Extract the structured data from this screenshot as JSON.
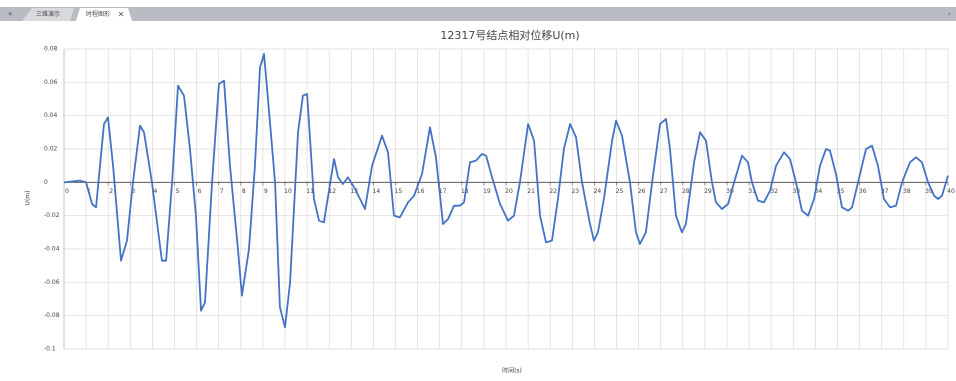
{
  "tabs": [
    "三维演示",
    "时程图形"
  ],
  "chart_data": {
    "type": "line",
    "title": "12317号结点相对位移U(m)",
    "x_label": "时间(s)",
    "y_label": "U(m)",
    "xlim": [
      0,
      40
    ],
    "xticks": [
      0,
      1,
      2,
      3,
      4,
      5,
      6,
      7,
      8,
      9,
      10,
      11,
      12,
      13,
      14,
      15,
      16,
      17,
      18,
      19,
      20,
      21,
      22,
      23,
      24,
      25,
      26,
      27,
      28,
      29,
      30,
      31,
      32,
      33,
      34,
      35,
      36,
      37,
      38,
      39,
      40
    ],
    "ylim": [
      -0.1,
      0.08
    ],
    "yticks": [
      -0.1,
      -0.08,
      -0.06,
      -0.04,
      -0.02,
      0,
      0.02,
      0.04,
      0.06,
      0.08
    ],
    "grid": true,
    "series": [
      {
        "name": "U",
        "color": "#4472c4",
        "x": [
          0,
          0.72,
          1.0,
          1.27,
          1.45,
          1.81,
          1.99,
          2.22,
          2.58,
          2.85,
          3.12,
          3.44,
          3.62,
          3.98,
          4.43,
          4.62,
          4.89,
          5.16,
          5.43,
          5.7,
          5.97,
          6.2,
          6.38,
          6.7,
          7.01,
          7.24,
          7.51,
          7.87,
          8.05,
          8.37,
          8.64,
          8.87,
          9.05,
          9.23,
          9.55,
          9.77,
          10.0,
          10.23,
          10.59,
          10.81,
          11.0,
          11.31,
          11.54,
          11.76,
          12.22,
          12.4,
          12.62,
          12.85,
          13.17,
          13.62,
          13.94,
          14.39,
          14.66,
          14.93,
          15.2,
          15.57,
          15.84,
          16.2,
          16.56,
          16.83,
          17.15,
          17.38,
          17.65,
          17.92,
          18.1,
          18.37,
          18.64,
          18.91,
          19.1,
          19.37,
          19.73,
          20.09,
          20.36,
          20.63,
          21.0,
          21.27,
          21.54,
          21.81,
          22.08,
          22.35,
          22.62,
          22.9,
          23.17,
          23.44,
          23.8,
          23.98,
          24.16,
          24.43,
          24.8,
          24.98,
          25.25,
          25.61,
          25.88,
          26.06,
          26.33,
          26.61,
          26.97,
          27.24,
          27.42,
          27.69,
          27.96,
          28.14,
          28.51,
          28.78,
          29.05,
          29.32,
          29.5,
          29.77,
          30.05,
          30.32,
          30.68,
          30.95,
          31.13,
          31.4,
          31.67,
          31.95,
          32.22,
          32.58,
          32.85,
          33.12,
          33.39,
          33.67,
          33.94,
          34.21,
          34.48,
          34.66,
          34.93,
          35.2,
          35.48,
          35.66,
          35.93,
          36.29,
          36.56,
          36.83,
          37.1,
          37.38,
          37.65,
          37.92,
          38.28,
          38.55,
          38.82,
          39.1,
          39.37,
          39.55,
          39.73,
          40.0
        ],
        "values": [
          0,
          0.001,
          0,
          -0.013,
          -0.015,
          0.035,
          0.039,
          0.01,
          -0.047,
          -0.035,
          0,
          0.034,
          0.03,
          0,
          -0.047,
          -0.047,
          0,
          0.058,
          0.052,
          0.02,
          -0.02,
          -0.077,
          -0.072,
          0,
          0.059,
          0.061,
          0.01,
          -0.04,
          -0.068,
          -0.04,
          0.01,
          0.069,
          0.077,
          0.05,
          0,
          -0.075,
          -0.087,
          -0.06,
          0.03,
          0.052,
          0.053,
          -0.01,
          -0.023,
          -0.024,
          0.014,
          0.003,
          -0.001,
          0.003,
          -0.004,
          -0.016,
          0.01,
          0.028,
          0.018,
          -0.02,
          -0.021,
          -0.012,
          -0.008,
          0.005,
          0.033,
          0.015,
          -0.025,
          -0.022,
          -0.014,
          -0.014,
          -0.012,
          0.012,
          0.013,
          0.017,
          0.016,
          0.003,
          -0.013,
          -0.023,
          -0.02,
          0,
          0.035,
          0.025,
          -0.02,
          -0.036,
          -0.035,
          -0.01,
          0.02,
          0.035,
          0.027,
          0,
          -0.025,
          -0.035,
          -0.03,
          -0.01,
          0.025,
          0.037,
          0.028,
          0,
          -0.03,
          -0.037,
          -0.03,
          0,
          0.035,
          0.038,
          0.02,
          -0.02,
          -0.03,
          -0.025,
          0.012,
          0.03,
          0.025,
          0,
          -0.012,
          -0.016,
          -0.013,
          0,
          0.016,
          0.012,
          0,
          -0.011,
          -0.012,
          -0.005,
          0.01,
          0.018,
          0.014,
          0,
          -0.017,
          -0.02,
          -0.01,
          0.01,
          0.02,
          0.019,
          0.005,
          -0.015,
          -0.017,
          -0.015,
          0,
          0.02,
          0.022,
          0.01,
          -0.01,
          -0.015,
          -0.014,
          0,
          0.012,
          0.015,
          0.012,
          0,
          -0.008,
          -0.01,
          -0.008,
          0.004
        ]
      }
    ]
  }
}
